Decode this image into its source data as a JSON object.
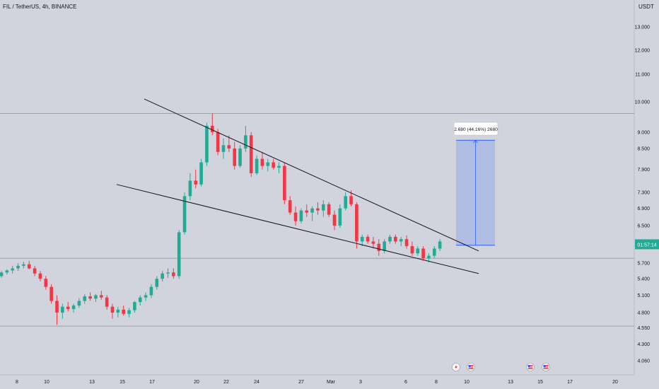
{
  "header": {
    "symbol": "FIL / TetherUS, 4h, BINANCE",
    "currency": "USDT"
  },
  "price_badge": {
    "value": "01:57:14",
    "color": "#22ab94"
  },
  "measure_label": "2.680 (44.16%) 2680",
  "event_icons": [
    "flash-icon",
    "us-flag-icon",
    "us-flag-icon",
    "us-flag-icon"
  ],
  "chart_data": {
    "type": "candlestick",
    "title": "FIL / TetherUS, 4h, BINANCE",
    "y_scale": "log",
    "ylim": [
      4.0,
      14.0
    ],
    "y_ticks": [
      "13.000",
      "12.000",
      "11.000",
      "10.000",
      "9.000",
      "8.500",
      "7.900",
      "7.300",
      "6.900",
      "6.500",
      "5.700",
      "5.400",
      "5.100",
      "4.800",
      "4.550",
      "4.300",
      "4.060"
    ],
    "x_ticks": [
      "8",
      "10",
      "13",
      "15",
      "17",
      "20",
      "22",
      "24",
      "27",
      "Mar",
      "3",
      "6",
      "8",
      "10",
      "13",
      "15",
      "17",
      "20"
    ],
    "up_color": "#22ab94",
    "down_color": "#f23645",
    "horizontal_levels": [
      9.6,
      5.8,
      4.58
    ],
    "trendlines": [
      {
        "from": {
          "x": "Feb 19",
          "y": 10.1
        },
        "to": {
          "x": "Mar 10",
          "y": 5.95
        }
      },
      {
        "from": {
          "x": "Feb 15",
          "y": 7.5
        },
        "to": {
          "x": "Mar 10",
          "y": 5.5
        }
      }
    ],
    "measure_box": {
      "from": 6.07,
      "to": 8.75,
      "change": "2.680 (44.16%) 2680"
    },
    "candles": [
      [
        5.45,
        5.55,
        5.42,
        5.52
      ],
      [
        5.52,
        5.58,
        5.48,
        5.56
      ],
      [
        5.56,
        5.65,
        5.5,
        5.6
      ],
      [
        5.6,
        5.7,
        5.55,
        5.65
      ],
      [
        5.65,
        5.73,
        5.6,
        5.68
      ],
      [
        5.68,
        5.75,
        5.58,
        5.6
      ],
      [
        5.6,
        5.65,
        5.45,
        5.5
      ],
      [
        5.5,
        5.55,
        5.35,
        5.4
      ],
      [
        5.4,
        5.45,
        5.2,
        5.25
      ],
      [
        5.25,
        5.3,
        4.95,
        5.0
      ],
      [
        5.0,
        5.1,
        4.6,
        4.8
      ],
      [
        4.8,
        4.95,
        4.7,
        4.9
      ],
      [
        4.9,
        4.98,
        4.82,
        4.86
      ],
      [
        4.86,
        4.95,
        4.8,
        4.92
      ],
      [
        4.92,
        5.05,
        4.88,
        5.0
      ],
      [
        5.0,
        5.12,
        4.95,
        5.08
      ],
      [
        5.08,
        5.15,
        5.0,
        5.04
      ],
      [
        5.04,
        5.12,
        4.98,
        5.1
      ],
      [
        5.1,
        5.18,
        5.02,
        5.06
      ],
      [
        5.06,
        5.1,
        4.85,
        4.9
      ],
      [
        4.9,
        4.95,
        4.7,
        4.8
      ],
      [
        4.8,
        4.9,
        4.72,
        4.85
      ],
      [
        4.85,
        4.92,
        4.75,
        4.78
      ],
      [
        4.78,
        4.88,
        4.72,
        4.84
      ],
      [
        4.84,
        5.0,
        4.8,
        4.98
      ],
      [
        4.98,
        5.1,
        4.92,
        5.06
      ],
      [
        5.06,
        5.15,
        5.0,
        5.1
      ],
      [
        5.1,
        5.3,
        5.05,
        5.25
      ],
      [
        5.25,
        5.45,
        5.2,
        5.4
      ],
      [
        5.4,
        5.55,
        5.35,
        5.5
      ],
      [
        5.5,
        5.6,
        5.42,
        5.52
      ],
      [
        5.52,
        5.6,
        5.4,
        5.45
      ],
      [
        5.45,
        6.4,
        5.4,
        6.35
      ],
      [
        6.35,
        7.3,
        6.3,
        7.2
      ],
      [
        7.2,
        7.8,
        7.1,
        7.6
      ],
      [
        7.6,
        7.9,
        7.4,
        7.5
      ],
      [
        7.5,
        8.2,
        7.45,
        8.1
      ],
      [
        8.1,
        9.3,
        8.0,
        9.2
      ],
      [
        9.2,
        9.6,
        8.9,
        9.0
      ],
      [
        9.0,
        9.1,
        8.3,
        8.4
      ],
      [
        8.4,
        8.8,
        8.2,
        8.6
      ],
      [
        8.6,
        8.9,
        8.4,
        8.5
      ],
      [
        8.5,
        8.7,
        7.9,
        8.0
      ],
      [
        8.0,
        8.6,
        7.95,
        8.5
      ],
      [
        8.5,
        9.2,
        8.4,
        8.9
      ],
      [
        8.9,
        9.0,
        7.7,
        7.8
      ],
      [
        7.8,
        8.3,
        7.75,
        8.2
      ],
      [
        8.2,
        8.4,
        7.9,
        8.0
      ],
      [
        8.0,
        8.2,
        7.85,
        8.1
      ],
      [
        8.1,
        8.2,
        7.9,
        7.95
      ],
      [
        7.95,
        8.1,
        7.8,
        8.0
      ],
      [
        8.0,
        8.1,
        7.0,
        7.1
      ],
      [
        7.1,
        7.2,
        6.75,
        6.8
      ],
      [
        6.8,
        6.95,
        6.5,
        6.6
      ],
      [
        6.6,
        6.9,
        6.55,
        6.85
      ],
      [
        6.85,
        7.0,
        6.7,
        6.8
      ],
      [
        6.8,
        6.95,
        6.6,
        6.9
      ],
      [
        6.9,
        7.05,
        6.75,
        6.85
      ],
      [
        6.85,
        7.1,
        6.7,
        7.0
      ],
      [
        7.0,
        7.05,
        6.7,
        6.75
      ],
      [
        6.75,
        6.85,
        6.4,
        6.5
      ],
      [
        6.5,
        7.0,
        6.45,
        6.9
      ],
      [
        6.9,
        7.3,
        6.85,
        7.2
      ],
      [
        7.2,
        7.35,
        6.95,
        7.0
      ],
      [
        7.0,
        7.05,
        6.0,
        6.15
      ],
      [
        6.15,
        6.3,
        6.05,
        6.25
      ],
      [
        6.25,
        6.3,
        6.1,
        6.15
      ],
      [
        6.15,
        6.25,
        6.0,
        6.1
      ],
      [
        6.1,
        6.2,
        5.85,
        5.95
      ],
      [
        5.95,
        6.2,
        5.9,
        6.15
      ],
      [
        6.15,
        6.3,
        6.1,
        6.25
      ],
      [
        6.25,
        6.3,
        6.1,
        6.15
      ],
      [
        6.15,
        6.25,
        6.05,
        6.2
      ],
      [
        6.2,
        6.28,
        6.0,
        6.05
      ],
      [
        6.05,
        6.15,
        5.85,
        5.9
      ],
      [
        5.9,
        6.05,
        5.85,
        6.0
      ],
      [
        6.0,
        6.05,
        5.75,
        5.8
      ],
      [
        5.8,
        5.9,
        5.72,
        5.85
      ],
      [
        5.85,
        6.05,
        5.8,
        6.0
      ],
      [
        6.0,
        6.2,
        5.95,
        6.15
      ]
    ]
  }
}
